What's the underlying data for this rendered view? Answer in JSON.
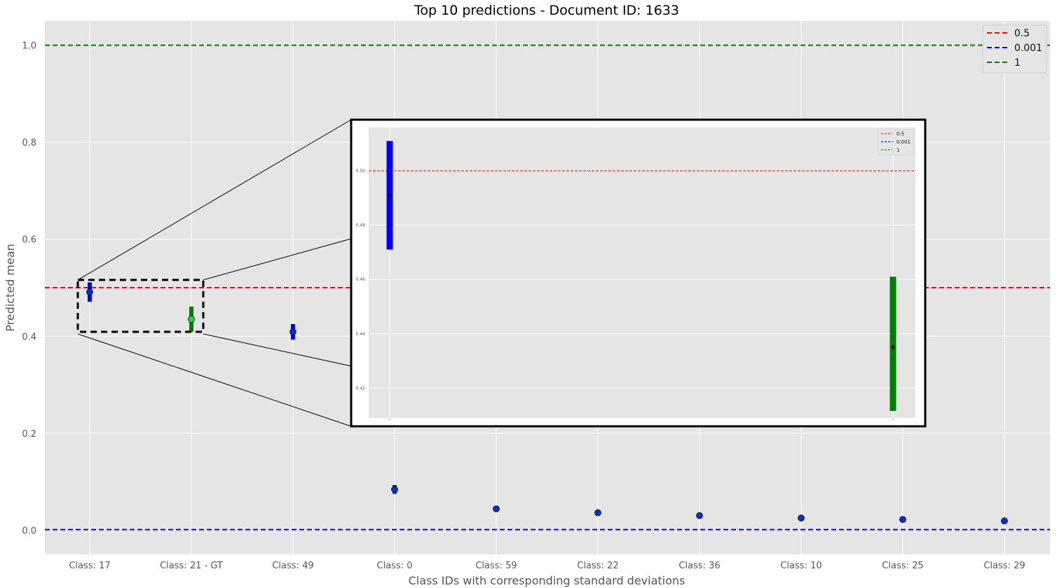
{
  "chart_data": {
    "type": "scatter",
    "title": "Top 10 predictions - Document ID: 1633",
    "xlabel": "Class IDs with corresponding standard deviations",
    "ylabel": "Predicted mean",
    "ylim": [
      -0.05,
      1.05
    ],
    "y_ticks": [
      "0.0",
      "0.2",
      "0.4",
      "0.6",
      "0.8",
      "1.0"
    ],
    "categories": [
      "Class: 17",
      "Class: 21 - GT",
      "Class: 49",
      "Class: 0",
      "Class: 59",
      "Class: 22",
      "Class: 36",
      "Class: 10",
      "Class: 25",
      "Class: 29"
    ],
    "points": [
      {
        "mean": 0.491,
        "std": 0.02,
        "color": "#0000ff"
      },
      {
        "mean": 0.435,
        "std": 0.026,
        "color": "#008000"
      },
      {
        "mean": 0.409,
        "std": 0.016,
        "color": "#0000ff"
      },
      {
        "mean": 0.084,
        "std": 0.009,
        "color": "#0000ff"
      },
      {
        "mean": 0.044,
        "std": 0.003,
        "color": "#0000ff"
      },
      {
        "mean": 0.036,
        "std": 0.003,
        "color": "#0000ff"
      },
      {
        "mean": 0.03,
        "std": 0.002,
        "color": "#0000ff"
      },
      {
        "mean": 0.025,
        "std": 0.002,
        "color": "#0000ff"
      },
      {
        "mean": 0.022,
        "std": 0.002,
        "color": "#0000ff"
      },
      {
        "mean": 0.019,
        "std": 0.002,
        "color": "#0000ff"
      }
    ],
    "hlines": [
      {
        "label": "0.5",
        "y": 0.5,
        "color": "#ff0000"
      },
      {
        "label": "0.001",
        "y": 0.001,
        "color": "#0000ff"
      },
      {
        "label": "1",
        "y": 1.0,
        "color": "#008000"
      }
    ],
    "legend_position": "top-right",
    "grid": true,
    "inset": {
      "x_range": [
        "Class: 17",
        "Class: 21 - GT"
      ],
      "ylim": [
        0.409,
        0.516
      ],
      "y_ticks": [
        "0.42",
        "0.44",
        "0.46",
        "0.48",
        "0.50"
      ],
      "legend_position": "top-right"
    }
  }
}
